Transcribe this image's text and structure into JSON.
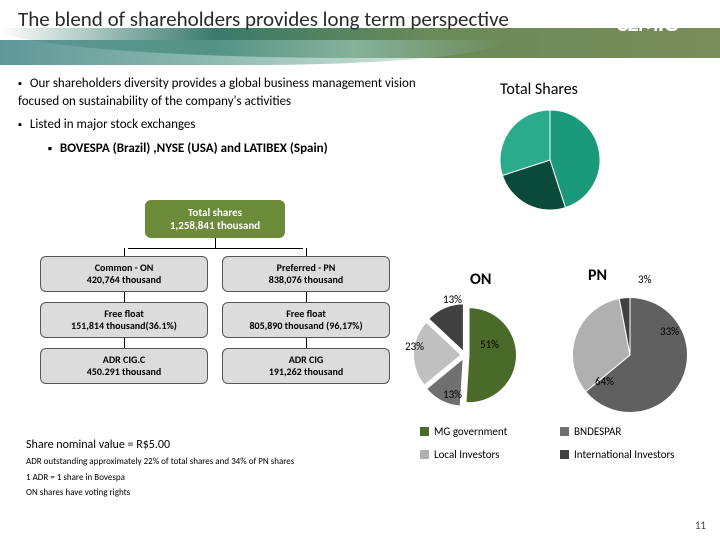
{
  "title": "The blend of shareholders provides long term perspective",
  "logo": "CEMIG",
  "bullets": {
    "b1": "Our shareholders diversity provides a global business management vision focused on sustainability of the company's activities",
    "b2": "Listed in major stock exchanges",
    "b2sub": "BOVESPA (Brazil) ,NYSE (USA) and LATIBEX (Spain)"
  },
  "tree": {
    "root_l1": "Total shares",
    "root_l2": "1,258,841 thousand",
    "on_header": "Common - ON\n420,764 thousand",
    "on_float": "Free float\n151,814 thousand(36.1%)",
    "on_adr": "ADR CIG.C\n450.291 thousand",
    "pn_header": "Preferred - PN\n838,076 thousand",
    "pn_float": "Free float\n805,890 thousand (96,17%)",
    "pn_adr": "ADR CIG\n191,262 thousand"
  },
  "footnotes": {
    "nominal": "Share nominal value = R$5.00",
    "f1": "ADR outstanding approximately 22% of  total shares and 34% of PN shares",
    "f2": "1 ADR = 1 share in Bovespa",
    "f3": "ON shares have voting rights"
  },
  "charts": {
    "total": {
      "label": "Total Shares",
      "slices": [
        {
          "pct": 45,
          "color": "#1a9a7a"
        },
        {
          "pct": 25,
          "color": "#0a4a3a"
        },
        {
          "pct": 30,
          "color": "#2aab8a"
        }
      ],
      "size": 100,
      "explode": false
    },
    "on": {
      "label": "ON",
      "slices": [
        {
          "pct": 51,
          "color": "#4a6a2a",
          "label": "51%"
        },
        {
          "pct": 13,
          "color": "#707070",
          "label": "13%"
        },
        {
          "pct": 23,
          "color": "#c0c0c0",
          "label": "23%"
        },
        {
          "pct": 13,
          "color": "#404040",
          "label": "13%"
        }
      ],
      "size": 95,
      "explode": true
    },
    "pn": {
      "label": "PN",
      "slices": [
        {
          "pct": 64,
          "color": "#606060",
          "label": "64%"
        },
        {
          "pct": 33,
          "color": "#b0b0b0",
          "label": "33%"
        },
        {
          "pct": 3,
          "color": "#404040",
          "label": "3%"
        }
      ],
      "size": 115,
      "explode": false
    },
    "legend": {
      "mg": {
        "label": "MG government",
        "color": "#4a6a2a"
      },
      "bnd": {
        "label": "BNDESPAR",
        "color": "#707070"
      },
      "local": {
        "label": "Local Investors",
        "color": "#b0b0b0"
      },
      "intl": {
        "label": "International Investors",
        "color": "#404040"
      }
    }
  },
  "on_labels": {
    "p51": "51%",
    "p13a": "13%",
    "p23": "23%",
    "p13b": "13%"
  },
  "pn_labels": {
    "p64": "64%",
    "p33": "33%",
    "p3": "3%"
  },
  "page_num": "11"
}
